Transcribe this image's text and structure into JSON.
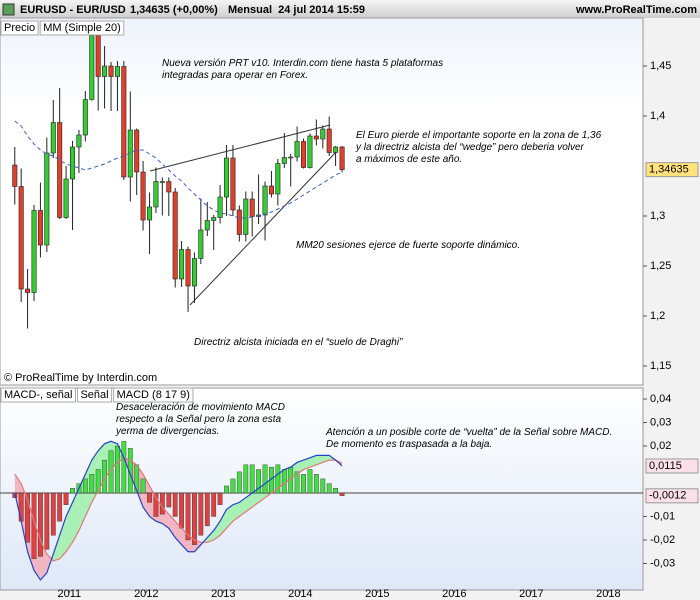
{
  "chart_data": [
    {
      "type": "candlestick",
      "title": "EURUSD - EUR/USD",
      "subtitle": "1,34635 (+0,00%)",
      "period": "Mensual  24 jul 2014 15:59",
      "source": "www.ProRealTime.com",
      "copyright": "© ProRealTime by Interdin.com",
      "price_name": "Precio",
      "up_color": "#33cc33",
      "down_color": "#e0402a",
      "x": [
        2010.292,
        2010.375,
        2010.458,
        2010.542,
        2010.625,
        2010.708,
        2010.792,
        2010.875,
        2010.958,
        2011.042,
        2011.125,
        2011.208,
        2011.292,
        2011.375,
        2011.458,
        2011.542,
        2011.625,
        2011.708,
        2011.792,
        2011.875,
        2011.958,
        2012.042,
        2012.125,
        2012.208,
        2012.292,
        2012.375,
        2012.458,
        2012.542,
        2012.625,
        2012.708,
        2012.792,
        2012.875,
        2012.958,
        2013.042,
        2013.125,
        2013.208,
        2013.292,
        2013.375,
        2013.458,
        2013.542,
        2013.625,
        2013.708,
        2013.792,
        2013.875,
        2013.958,
        2014.042,
        2014.125,
        2014.208,
        2014.292,
        2014.375,
        2014.458,
        2014.542
      ],
      "open": [
        1.351,
        1.3295,
        1.227,
        1.2235,
        1.3055,
        1.271,
        1.363,
        1.3935,
        1.2985,
        1.337,
        1.369,
        1.381,
        1.4165,
        1.4805,
        1.4395,
        1.45,
        1.4395,
        1.4495,
        1.339,
        1.386,
        1.344,
        1.296,
        1.309,
        1.3345,
        1.3345,
        1.324,
        1.237,
        1.2665,
        1.23,
        1.2575,
        1.286,
        1.2955,
        1.2985,
        1.319,
        1.358,
        1.306,
        1.2815,
        1.317,
        1.2995,
        1.301,
        1.33,
        1.322,
        1.3525,
        1.3585,
        1.359,
        1.3745,
        1.3485,
        1.38,
        1.377,
        1.387,
        1.3635,
        1.369
      ],
      "high": [
        1.369,
        1.3475,
        1.247,
        1.311,
        1.3335,
        1.3785,
        1.416,
        1.428,
        1.35,
        1.375,
        1.386,
        1.425,
        1.488,
        1.494,
        1.47,
        1.454,
        1.455,
        1.455,
        1.4245,
        1.3875,
        1.355,
        1.3235,
        1.3485,
        1.3385,
        1.3385,
        1.328,
        1.275,
        1.2695,
        1.2635,
        1.3175,
        1.314,
        1.301,
        1.331,
        1.371,
        1.371,
        1.3105,
        1.3245,
        1.3245,
        1.3415,
        1.3345,
        1.345,
        1.357,
        1.383,
        1.362,
        1.3895,
        1.3775,
        1.3825,
        1.3965,
        1.3905,
        1.3995,
        1.37,
        1.37
      ],
      "low": [
        1.3115,
        1.214,
        1.1875,
        1.215,
        1.2585,
        1.264,
        1.358,
        1.297,
        1.297,
        1.286,
        1.343,
        1.3745,
        1.4155,
        1.4055,
        1.4075,
        1.405,
        1.405,
        1.336,
        1.3145,
        1.321,
        1.2855,
        1.262,
        1.303,
        1.3005,
        1.3,
        1.2285,
        1.229,
        1.204,
        1.213,
        1.252,
        1.28,
        1.266,
        1.2925,
        1.3,
        1.3,
        1.2745,
        1.2745,
        1.2795,
        1.292,
        1.2755,
        1.3185,
        1.3105,
        1.348,
        1.3295,
        1.3545,
        1.3475,
        1.3475,
        1.3705,
        1.3675,
        1.36,
        1.35,
        1.3436
      ],
      "close": [
        1.3295,
        1.227,
        1.2235,
        1.3055,
        1.271,
        1.363,
        1.3935,
        1.2985,
        1.337,
        1.369,
        1.381,
        1.4165,
        1.4805,
        1.4395,
        1.45,
        1.4395,
        1.4495,
        1.339,
        1.386,
        1.344,
        1.296,
        1.309,
        1.3345,
        1.3345,
        1.324,
        1.237,
        1.2665,
        1.23,
        1.2575,
        1.286,
        1.2955,
        1.2985,
        1.319,
        1.358,
        1.306,
        1.2815,
        1.317,
        1.2995,
        1.301,
        1.33,
        1.322,
        1.3525,
        1.3585,
        1.359,
        1.3745,
        1.3485,
        1.38,
        1.377,
        1.387,
        1.3635,
        1.369,
        1.34635
      ],
      "series": [
        {
          "name": "MM (Simple 20)",
          "color": "#3a5fcd",
          "dashed": true,
          "values": [
            1.395,
            1.39,
            1.38,
            1.372,
            1.366,
            1.362,
            1.36,
            1.356,
            1.352,
            1.35,
            1.348,
            1.346,
            1.348,
            1.35,
            1.352,
            1.355,
            1.358,
            1.36,
            1.363,
            1.366,
            1.366,
            1.362,
            1.358,
            1.352,
            1.346,
            1.34,
            1.335,
            1.328,
            1.322,
            1.316,
            1.31,
            1.306,
            1.303,
            1.302,
            1.3,
            1.298,
            1.298,
            1.299,
            1.3,
            1.302,
            1.304,
            1.307,
            1.31,
            1.313,
            1.317,
            1.321,
            1.325,
            1.329,
            1.333,
            1.337,
            1.341,
            1.344
          ]
        }
      ],
      "price_marker": {
        "value": 1.34635,
        "label": "1,34635"
      },
      "xlim": [
        2010.1,
        2018.45
      ],
      "ylim": [
        1.131,
        1.498
      ],
      "yticks": [
        {
          "value": 1.15,
          "label": "1,15"
        },
        {
          "value": 1.2,
          "label": "1,2"
        },
        {
          "value": 1.25,
          "label": "1,25"
        },
        {
          "value": 1.3,
          "label": "1,3"
        },
        {
          "value": 1.4,
          "label": "1,4"
        },
        {
          "value": 1.45,
          "label": "1,45"
        }
      ],
      "grid": false,
      "annotations": [
        "Nueva versión PRT v10. Interdin.com tiene hasta 5 plataformas\nintegradas para operar en Forex.",
        "El Euro pierde el importante soporte en la zona de 1,36\ny la directriz alcista del “wedge” pero deberia volver\na máximos de este año.",
        "MM20 sesiones ejerce de fuerte soporte dinámico.",
        "Directriz alcista iniciada en el “suelo de Draghi”"
      ]
    },
    {
      "type": "macd",
      "x": [
        2010.292,
        2010.375,
        2010.458,
        2010.542,
        2010.625,
        2010.708,
        2010.792,
        2010.875,
        2010.958,
        2011.042,
        2011.125,
        2011.208,
        2011.292,
        2011.375,
        2011.458,
        2011.542,
        2011.625,
        2011.708,
        2011.792,
        2011.875,
        2011.958,
        2012.042,
        2012.125,
        2012.208,
        2012.292,
        2012.375,
        2012.458,
        2012.542,
        2012.625,
        2012.708,
        2012.792,
        2012.875,
        2012.958,
        2013.042,
        2013.125,
        2013.208,
        2013.292,
        2013.375,
        2013.458,
        2013.542,
        2013.625,
        2013.708,
        2013.792,
        2013.875,
        2013.958,
        2014.042,
        2014.125,
        2014.208,
        2014.292,
        2014.375,
        2014.458,
        2014.542
      ],
      "series": [
        {
          "name": "MACD-, señal",
          "color": "#e04040",
          "positive_color": "#44dd44",
          "values": [
            -0.002,
            -0.012,
            -0.021,
            -0.028,
            -0.027,
            -0.024,
            -0.018,
            -0.012,
            -0.005,
            0.002,
            0.004,
            0.006,
            0.008,
            0.01,
            0.014,
            0.018,
            0.02,
            0.022,
            0.019,
            0.012,
            0.006,
            -0.004,
            -0.01,
            -0.009,
            -0.006,
            -0.01,
            -0.015,
            -0.02,
            -0.022,
            -0.018,
            -0.014,
            -0.01,
            -0.005,
            0.003,
            0.006,
            0.009,
            0.012,
            0.012,
            0.01,
            0.012,
            0.011,
            0.012,
            0.01,
            0.011,
            0.009,
            0.008,
            0.01,
            0.008,
            0.006,
            0.004,
            0.002,
            -0.0012
          ]
        },
        {
          "name": "Señal",
          "color": "#e07878",
          "values": [
            0.008,
            0.004,
            -0.003,
            -0.012,
            -0.02,
            -0.026,
            -0.029,
            -0.028,
            -0.025,
            -0.021,
            -0.016,
            -0.01,
            -0.004,
            0.001,
            0.006,
            0.01,
            0.013,
            0.015,
            0.014,
            0.012,
            0.008,
            0.003,
            -0.002,
            -0.006,
            -0.009,
            -0.012,
            -0.015,
            -0.018,
            -0.02,
            -0.021,
            -0.021,
            -0.02,
            -0.018,
            -0.015,
            -0.012,
            -0.01,
            -0.008,
            -0.006,
            -0.004,
            -0.002,
            0.0,
            0.002,
            0.004,
            0.006,
            0.008,
            0.01,
            0.011,
            0.012,
            0.013,
            0.014,
            0.014,
            0.0127
          ]
        },
        {
          "name": "MACD (8 17 9)",
          "color": "#2244cc",
          "values": [
            0.0,
            -0.012,
            -0.025,
            -0.033,
            -0.037,
            -0.034,
            -0.026,
            -0.018,
            -0.01,
            -0.004,
            0.002,
            0.008,
            0.014,
            0.018,
            0.021,
            0.022,
            0.021,
            0.015,
            0.008,
            0.001,
            -0.006,
            -0.01,
            -0.012,
            -0.013,
            -0.015,
            -0.019,
            -0.022,
            -0.025,
            -0.025,
            -0.022,
            -0.019,
            -0.016,
            -0.012,
            -0.007,
            -0.005,
            -0.004,
            -0.002,
            0.0,
            0.002,
            0.004,
            0.006,
            0.008,
            0.01,
            0.011,
            0.013,
            0.014,
            0.015,
            0.016,
            0.016,
            0.016,
            0.014,
            0.0115
          ]
        }
      ],
      "fill_up": "#a8f0b4",
      "fill_down": "#f2b6c2",
      "macd_marker": {
        "value": 0.0115,
        "label": "0,0115"
      },
      "histogram_marker": {
        "value": -0.0012,
        "label": "-0,0012"
      },
      "xlim": [
        2010.1,
        2018.45
      ],
      "xticks": [
        2011,
        2012,
        2013,
        2014,
        2015,
        2016,
        2017,
        2018
      ],
      "ylim": [
        -0.0413,
        0.0447
      ],
      "yticks": [
        {
          "value": -0.03,
          "label": "-0,03"
        },
        {
          "value": -0.02,
          "label": "-0,02"
        },
        {
          "value": -0.01,
          "label": "-0,01"
        },
        {
          "value": 0.02,
          "label": "0,02"
        },
        {
          "value": 0.03,
          "label": "0,03"
        },
        {
          "value": 0.04,
          "label": "0,04"
        }
      ],
      "annotations": [
        "Desaceleración de movimiento MACD\nrespecto a la Señal pero la zona esta\nyerma de divergencias.",
        "Atención a un posible corte de “vuelta” de la Señal sobre MACD.\nDe momento es traspasada a la baja."
      ]
    }
  ]
}
